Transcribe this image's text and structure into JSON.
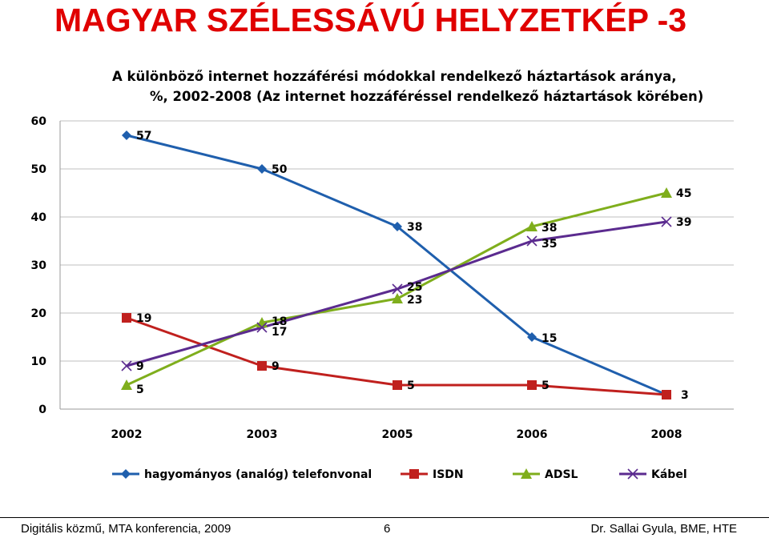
{
  "slide": {
    "title": "MAGYAR SZÉLESSÁVÚ HELYZETKÉP -3"
  },
  "footer": {
    "left": "Digitális közmű, MTA konferencia, 2009",
    "page_number": "6",
    "right": "Dr. Sallai Gyula, BME, HTE"
  },
  "chart_data": {
    "type": "line",
    "title": "A különböző internet hozzáférési módokkal rendelkező háztartások aránya,",
    "subtitle": "%, 2002-2008 (Az internet hozzáféréssel rendelkező háztartások körében)",
    "categories": [
      "2002",
      "2003",
      "2005",
      "2006",
      "2008"
    ],
    "ylim": [
      0,
      60
    ],
    "yticks": [
      "0",
      "10",
      "20",
      "30",
      "40",
      "50",
      "60"
    ],
    "grid": true,
    "legend": "bottom",
    "series": [
      {
        "name": "hagyományos (analóg) telefonvonal",
        "values": [
          57,
          50,
          38,
          15,
          3
        ],
        "color": "#1f5fad",
        "marker": "diamond",
        "labels": [
          "57",
          "50",
          "38",
          "15",
          "3"
        ]
      },
      {
        "name": "ISDN",
        "values": [
          19,
          9,
          5,
          5,
          3
        ],
        "color": "#c0201e",
        "marker": "square",
        "labels": [
          "19",
          "9",
          "5",
          "5",
          ""
        ]
      },
      {
        "name": "ADSL",
        "values": [
          5,
          18,
          23,
          38,
          45
        ],
        "color": "#7fae1c",
        "marker": "triangle",
        "labels": [
          "5",
          "18",
          "23",
          "38",
          "45"
        ]
      },
      {
        "name": "Kábel",
        "values": [
          9,
          17,
          25,
          35,
          39
        ],
        "color": "#5b2b8f",
        "marker": "x",
        "labels": [
          "9",
          "17",
          "25",
          "35",
          "39"
        ]
      }
    ]
  }
}
